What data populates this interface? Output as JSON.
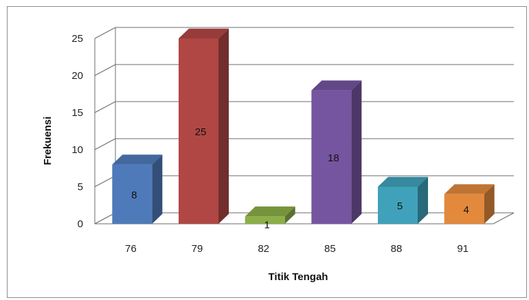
{
  "chart_data": {
    "type": "bar",
    "style": "3d-column",
    "title": "",
    "xlabel": "Titik Tengah",
    "ylabel": "Frekuensi",
    "categories": [
      "76",
      "79",
      "82",
      "85",
      "88",
      "91"
    ],
    "values": [
      8,
      25,
      1,
      18,
      5,
      4
    ],
    "data_labels": [
      "8",
      "25",
      "1",
      "18",
      "5",
      "4"
    ],
    "ylim": [
      0,
      25
    ],
    "yticks": [
      "0",
      "5",
      "10",
      "15",
      "20",
      "25"
    ],
    "grid": true,
    "legend": "none",
    "colors": [
      "#4F7ABA",
      "#B04744",
      "#8CAE48",
      "#7555A0",
      "#3FA1BA",
      "#E2893C"
    ]
  }
}
